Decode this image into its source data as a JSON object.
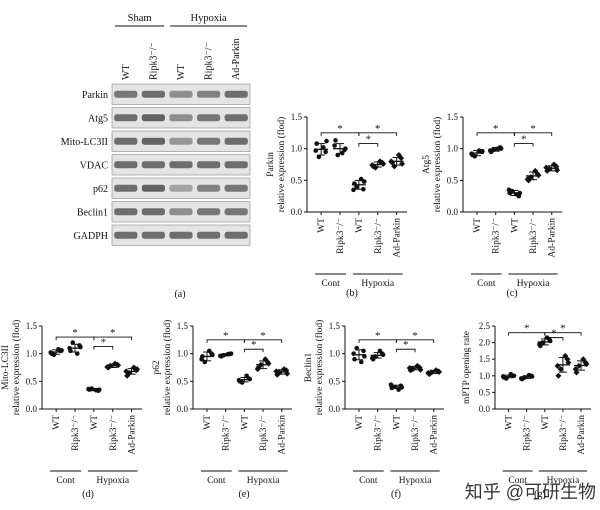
{
  "blot": {
    "caption": "(a)",
    "groups": [
      {
        "name": "Sham",
        "lanes": 2
      },
      {
        "name": "Hypoxia",
        "lanes": 3
      }
    ],
    "lanes": [
      "WT",
      "Ripk3⁻/⁻",
      "WT",
      "Ripk3⁻/⁻",
      "Ad-Parkin"
    ],
    "bands": [
      {
        "name": "Parkin",
        "intensity": [
          0.55,
          0.6,
          0.45,
          0.5,
          0.6
        ]
      },
      {
        "name": "Atg5",
        "intensity": [
          0.6,
          0.65,
          0.45,
          0.55,
          0.6
        ]
      },
      {
        "name": "Mito-LC3II",
        "intensity": [
          0.6,
          0.65,
          0.4,
          0.55,
          0.6
        ]
      },
      {
        "name": "VDAC",
        "intensity": [
          0.6,
          0.6,
          0.6,
          0.6,
          0.6
        ]
      },
      {
        "name": "p62",
        "intensity": [
          0.6,
          0.65,
          0.35,
          0.5,
          0.55
        ]
      },
      {
        "name": "Beclin1",
        "intensity": [
          0.6,
          0.6,
          0.45,
          0.55,
          0.55
        ]
      },
      {
        "name": "GADPH",
        "intensity": [
          0.6,
          0.6,
          0.6,
          0.6,
          0.6
        ]
      }
    ]
  },
  "x_categories": [
    "WT",
    "Ripk3⁻/⁻",
    "WT",
    "Ripk3⁻/⁻",
    "Ad-Parkin"
  ],
  "group_labels": [
    "Cont",
    "Hypoxia"
  ],
  "significance_mark": "*",
  "chart_data": [
    {
      "caption": "(b)",
      "type": "scatter",
      "ylabel": "Parkin",
      "ylabel2": "relative expression (flod)",
      "ylim": [
        0,
        1.5
      ],
      "yticks": [
        0,
        0.5,
        1.0,
        1.5
      ],
      "ytick_labels": [
        "0.0",
        "0.5",
        "1.0",
        "1.5"
      ],
      "points": [
        [
          1.08,
          0.95,
          0.87,
          1.02,
          0.97,
          1.12
        ],
        [
          1.13,
          0.98,
          0.9,
          0.93,
          1.05,
          1.0
        ],
        [
          0.45,
          0.36,
          0.4,
          0.52,
          0.35,
          0.48
        ],
        [
          0.72,
          0.78,
          0.7,
          0.8,
          0.74,
          0.76
        ],
        [
          0.78,
          0.85,
          0.72,
          0.9,
          0.8,
          0.76
        ]
      ],
      "means": [
        0.99,
        1.0,
        0.43,
        0.75,
        0.8
      ],
      "sd": [
        0.09,
        0.08,
        0.07,
        0.04,
        0.06
      ],
      "sig": [
        {
          "from": 0,
          "to": 2,
          "y": 1.25
        },
        {
          "from": 2,
          "to": 3,
          "y": 1.08
        },
        {
          "from": 2,
          "to": 4,
          "y": 1.25
        }
      ]
    },
    {
      "caption": "(c)",
      "type": "scatter",
      "ylabel": "Atg5",
      "ylabel2": "relative expression (flod)",
      "ylim": [
        0,
        1.5
      ],
      "yticks": [
        0,
        0.5,
        1.0,
        1.5
      ],
      "ytick_labels": [
        "0.0",
        "0.5",
        "1.0",
        "1.5"
      ],
      "points": [
        [
          0.9,
          0.95,
          0.88,
          0.97,
          0.92,
          0.96
        ],
        [
          0.95,
          1.02,
          0.98,
          1.0,
          0.97,
          1.0
        ],
        [
          0.3,
          0.25,
          0.33,
          0.28,
          0.35,
          0.3
        ],
        [
          0.5,
          0.6,
          0.55,
          0.65,
          0.52,
          0.58
        ],
        [
          0.65,
          0.72,
          0.68,
          0.75,
          0.7,
          0.66
        ]
      ],
      "means": [
        0.93,
        0.99,
        0.3,
        0.57,
        0.69
      ],
      "sd": [
        0.04,
        0.03,
        0.04,
        0.06,
        0.04
      ],
      "sig": [
        {
          "from": 0,
          "to": 2,
          "y": 1.25
        },
        {
          "from": 2,
          "to": 3,
          "y": 1.08
        },
        {
          "from": 2,
          "to": 4,
          "y": 1.25
        }
      ]
    },
    {
      "caption": "(d)",
      "type": "scatter",
      "ylabel": "Mito-LC3II",
      "ylabel2": "relative expression (flod)",
      "ylim": [
        0,
        1.5
      ],
      "yticks": [
        0,
        0.5,
        1.0,
        1.5
      ],
      "ytick_labels": [
        "0.0",
        "0.5",
        "1.0",
        "1.5"
      ],
      "points": [
        [
          1.0,
          1.05,
          0.98,
          1.08,
          1.02,
          1.06
        ],
        [
          1.05,
          1.15,
          1.2,
          1.0,
          1.1,
          1.12
        ],
        [
          0.35,
          0.33,
          0.37,
          0.34,
          0.36,
          0.35
        ],
        [
          0.75,
          0.8,
          0.78,
          0.82,
          0.76,
          0.79
        ],
        [
          0.6,
          0.7,
          0.65,
          0.75,
          0.68,
          0.72
        ]
      ],
      "means": [
        1.03,
        1.1,
        0.35,
        0.78,
        0.68
      ],
      "sd": [
        0.04,
        0.07,
        0.02,
        0.03,
        0.05
      ],
      "sig": [
        {
          "from": 0,
          "to": 2,
          "y": 1.3
        },
        {
          "from": 2,
          "to": 3,
          "y": 1.13
        },
        {
          "from": 2,
          "to": 4,
          "y": 1.3
        }
      ]
    },
    {
      "caption": "(e)",
      "type": "scatter",
      "ylabel": "p62",
      "ylabel2": "relative expression (flod)",
      "ylim": [
        0,
        1.5
      ],
      "yticks": [
        0,
        0.5,
        1.0,
        1.5
      ],
      "ytick_labels": [
        "0.0",
        "0.5",
        "1.0",
        "1.5"
      ],
      "points": [
        [
          0.95,
          1.0,
          0.85,
          1.05,
          0.9,
          0.98
        ],
        [
          0.95,
          1.0,
          0.97,
          0.99,
          0.96,
          1.0
        ],
        [
          0.5,
          0.55,
          0.48,
          0.6,
          0.52,
          0.54
        ],
        [
          0.75,
          0.85,
          0.8,
          0.9,
          0.72,
          0.82
        ],
        [
          0.62,
          0.7,
          0.66,
          0.72,
          0.68,
          0.64
        ]
      ],
      "means": [
        0.95,
        0.98,
        0.53,
        0.8,
        0.67
      ],
      "sd": [
        0.08,
        0.02,
        0.04,
        0.07,
        0.04
      ],
      "sig": [
        {
          "from": 0,
          "to": 2,
          "y": 1.25
        },
        {
          "from": 2,
          "to": 3,
          "y": 1.08
        },
        {
          "from": 2,
          "to": 4,
          "y": 1.25
        }
      ]
    },
    {
      "caption": "(f)",
      "type": "scatter",
      "ylabel": "Beclin1",
      "ylabel2": "relative expression (flod)",
      "ylim": [
        0,
        1.5
      ],
      "yticks": [
        0,
        0.5,
        1.0,
        1.5
      ],
      "ytick_labels": [
        "0.0",
        "0.5",
        "1.0",
        "1.5"
      ],
      "points": [
        [
          0.9,
          1.05,
          1.1,
          0.85,
          1.0,
          0.95
        ],
        [
          0.9,
          1.0,
          0.95,
          1.05,
          0.92,
          0.98
        ],
        [
          0.38,
          0.42,
          0.4,
          0.35,
          0.44,
          0.39
        ],
        [
          0.7,
          0.75,
          0.72,
          0.78,
          0.74,
          0.71
        ],
        [
          0.63,
          0.68,
          0.66,
          0.7,
          0.65,
          0.67
        ]
      ],
      "means": [
        0.98,
        0.97,
        0.4,
        0.74,
        0.67
      ],
      "sd": [
        0.09,
        0.05,
        0.03,
        0.03,
        0.03
      ],
      "sig": [
        {
          "from": 0,
          "to": 2,
          "y": 1.25
        },
        {
          "from": 2,
          "to": 3,
          "y": 1.08
        },
        {
          "from": 2,
          "to": 4,
          "y": 1.25
        }
      ]
    },
    {
      "caption": "(g)",
      "type": "scatter",
      "ylabel": "mPTP opening rate",
      "ylabel2": "",
      "ylim": [
        0,
        2.5
      ],
      "yticks": [
        0,
        0.5,
        1.0,
        1.5,
        2.0,
        2.5
      ],
      "ytick_labels": [
        "0.0",
        "0.5",
        "1.0",
        "1.5",
        "2.0",
        "2.5"
      ],
      "points": [
        [
          0.95,
          1.0,
          0.92,
          1.05,
          0.98,
          1.0
        ],
        [
          0.9,
          1.0,
          0.95,
          1.02,
          0.92,
          0.98
        ],
        [
          1.9,
          2.1,
          2.0,
          2.15,
          1.95,
          2.05
        ],
        [
          1.0,
          1.5,
          1.2,
          1.6,
          1.3,
          1.4
        ],
        [
          1.1,
          1.4,
          1.3,
          1.5,
          1.2,
          1.35
        ]
      ],
      "means": [
        0.98,
        0.96,
        2.02,
        1.33,
        1.31
      ],
      "sd": [
        0.04,
        0.04,
        0.09,
        0.22,
        0.14
      ],
      "sig": [
        {
          "from": 0,
          "to": 2,
          "y": 2.3
        },
        {
          "from": 2,
          "to": 3,
          "y": 2.15
        },
        {
          "from": 2,
          "to": 4,
          "y": 2.3
        }
      ]
    }
  ],
  "watermark": "知乎 @可研生物"
}
